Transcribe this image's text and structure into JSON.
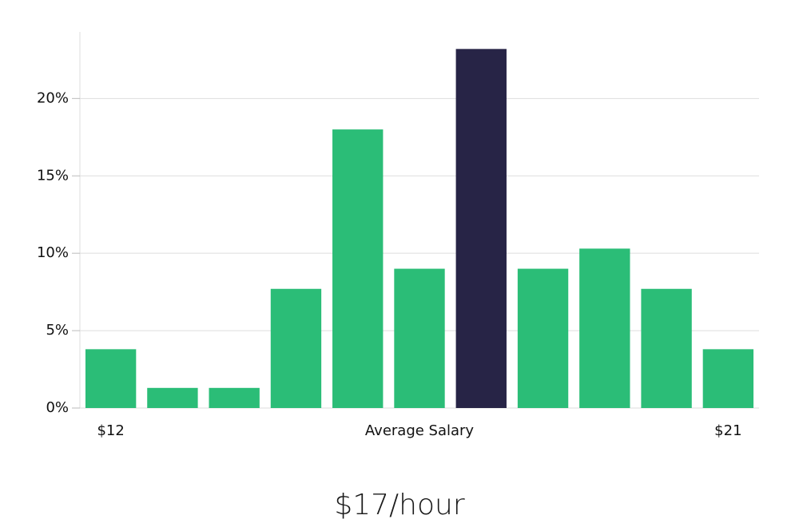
{
  "chart_data": {
    "type": "bar",
    "annotation": "$17/hour",
    "x_label": "Average Salary",
    "categories": [
      "$12",
      null,
      null,
      null,
      null,
      null,
      null,
      null,
      null,
      null,
      "$21"
    ],
    "values": [
      3.8,
      1.3,
      1.3,
      7.7,
      18.0,
      9.0,
      23.2,
      9.0,
      10.3,
      7.7,
      3.8
    ],
    "colors": [
      "#2bbd77",
      "#2bbd77",
      "#2bbd77",
      "#2bbd77",
      "#2bbd77",
      "#2bbd77",
      "#272446",
      "#2bbd77",
      "#2bbd77",
      "#2bbd77",
      "#2bbd77"
    ],
    "ylim": [
      0,
      24.3
    ],
    "yticks": [
      {
        "value": 0,
        "label": "0%"
      },
      {
        "value": 5,
        "label": "5%"
      },
      {
        "value": 10,
        "label": "10%"
      },
      {
        "value": 15,
        "label": "15%"
      },
      {
        "value": 20,
        "label": "20%"
      }
    ],
    "grid": true
  }
}
